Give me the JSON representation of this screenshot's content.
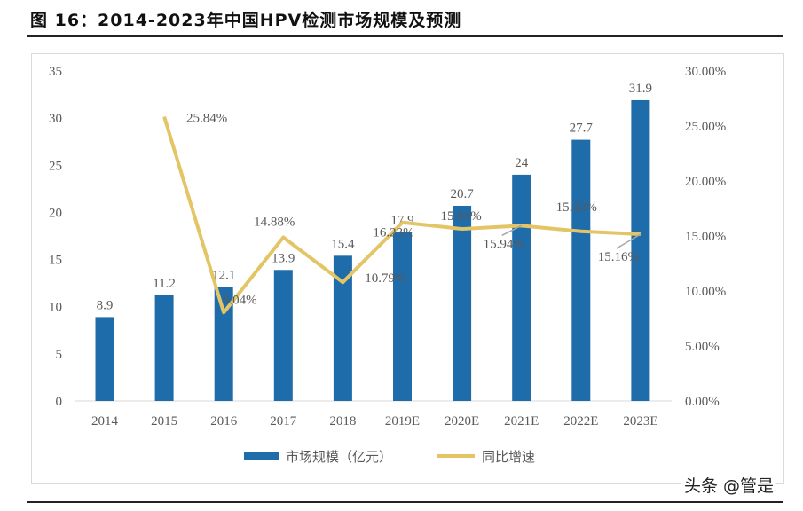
{
  "title": "图 16：2014-2023年中国HPV检测市场规模及预测",
  "watermark": "头条 @管是",
  "chart_data": {
    "type": "bar+line",
    "categories": [
      "2014",
      "2015",
      "2016",
      "2017",
      "2018",
      "2019E",
      "2020E",
      "2021E",
      "2022E",
      "2023E"
    ],
    "series": [
      {
        "name": "市场规模（亿元）",
        "type": "bar",
        "axis": "left",
        "color": "#1F6CAB",
        "values": [
          8.9,
          11.2,
          12.1,
          13.9,
          15.4,
          17.9,
          20.7,
          24,
          27.7,
          31.9
        ],
        "labels": [
          "8.9",
          "11.2",
          "12.1",
          "13.9",
          "15.4",
          "17.9",
          "20.7",
          "24",
          "27.7",
          "31.9"
        ]
      },
      {
        "name": "同比增速",
        "type": "line",
        "axis": "right",
        "color": "#E3C565",
        "values": [
          null,
          25.84,
          8.04,
          14.88,
          10.79,
          16.23,
          15.64,
          15.94,
          15.42,
          15.16
        ],
        "labels": [
          null,
          "25.84%",
          "8.04%",
          "14.88%",
          "10.79%",
          "16.23%",
          "15.64%",
          "15.94%",
          "15.42%",
          "15.16%"
        ]
      }
    ],
    "left_axis": {
      "range": [
        0,
        35
      ],
      "ticks": [
        "0",
        "5",
        "10",
        "15",
        "20",
        "25",
        "30",
        "35"
      ]
    },
    "right_axis": {
      "range": [
        0,
        30
      ],
      "ticks": [
        "0.00%",
        "5.00%",
        "10.00%",
        "15.00%",
        "20.00%",
        "25.00%",
        "30.00%"
      ]
    },
    "grid": false,
    "legend": "bottom"
  }
}
